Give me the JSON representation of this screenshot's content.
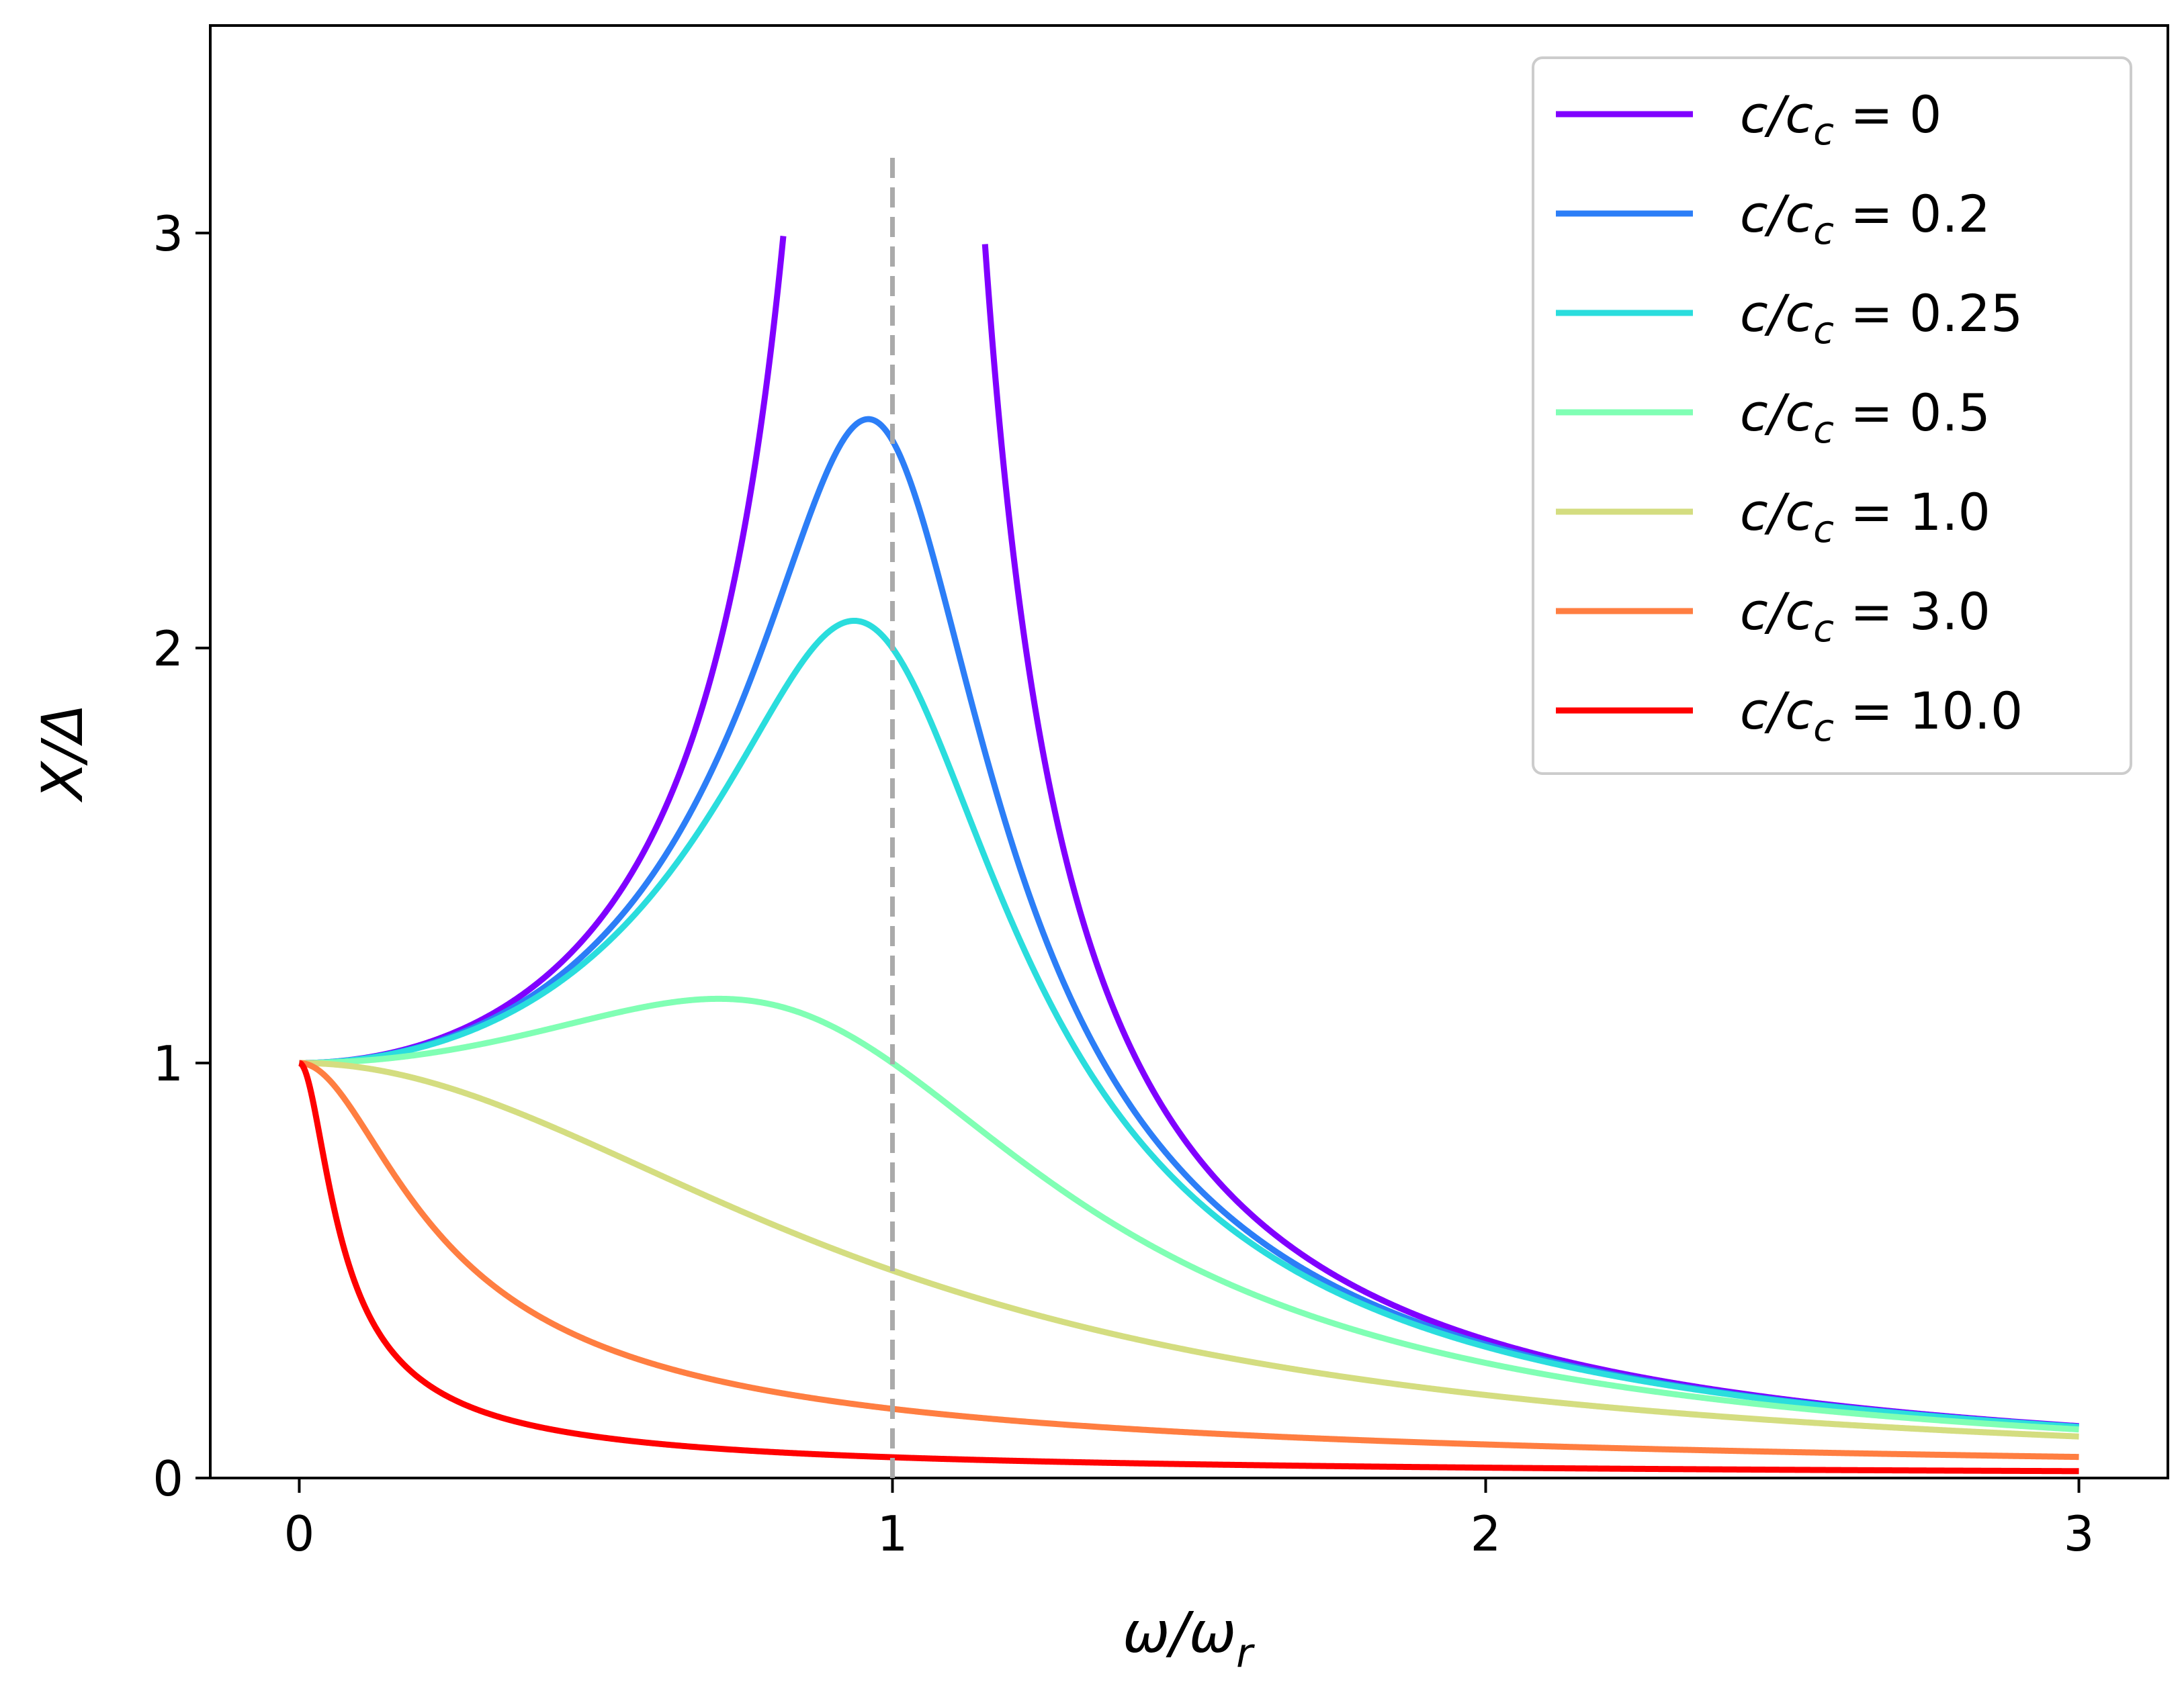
{
  "chart_data": {
    "type": "line",
    "title": "",
    "xlabel": "ω/ωr",
    "ylabel": "X/Δ",
    "xlim": [
      -0.15,
      3.15
    ],
    "ylim": [
      0,
      3.5
    ],
    "xticks": [
      "0",
      "1",
      "2",
      "3"
    ],
    "yticks": [
      "0",
      "1",
      "2",
      "3"
    ],
    "grid": false,
    "legend_position": "top-right",
    "reference_line": {
      "x": 1.0,
      "y_range": [
        0,
        3.2
      ],
      "style": "dashed",
      "color": "#aaaaaa"
    },
    "series": [
      {
        "name": "c/cc = 0",
        "zeta": 0,
        "color": "#8000ff",
        "legend": {
          "prefix": "c/c",
          "sub": "c",
          "suffix": " = 0"
        }
      },
      {
        "name": "c/cc = 0.2",
        "zeta": 0.2,
        "color": "#2c7ef7",
        "legend": {
          "prefix": "c/c",
          "sub": "c",
          "suffix": " = 0.2"
        }
      },
      {
        "name": "c/cc = 0.25",
        "zeta": 0.25,
        "color": "#2adddd",
        "legend": {
          "prefix": "c/c",
          "sub": "c",
          "suffix": " = 0.25"
        }
      },
      {
        "name": "c/cc = 0.5",
        "zeta": 0.5,
        "color": "#80ffb4",
        "legend": {
          "prefix": "c/c",
          "sub": "c",
          "suffix": " = 0.5"
        }
      },
      {
        "name": "c/cc = 1.0",
        "zeta": 1.0,
        "color": "#d4dd80",
        "legend": {
          "prefix": "c/c",
          "sub": "c",
          "suffix": " = 1.0"
        }
      },
      {
        "name": "c/cc = 3.0",
        "zeta": 3.0,
        "color": "#ff7e41",
        "legend": {
          "prefix": "c/c",
          "sub": "c",
          "suffix": " = 3.0"
        }
      },
      {
        "name": "c/cc = 10.0",
        "zeta": 10.0,
        "color": "#ff0000",
        "legend": {
          "prefix": "c/c",
          "sub": "c",
          "suffix": " = 10.0"
        }
      }
    ],
    "formula": "X/Δ = 1 / sqrt((1 - (ω/ωr)^2)^2 + (2·(c/cc)·(ω/ωr))^2)",
    "x_range": [
      0,
      3
    ],
    "clip_y_max": 3.0
  },
  "axes": {
    "xlabel_main": "ω/ω",
    "xlabel_sub": "r",
    "ylabel": "X/Δ"
  }
}
